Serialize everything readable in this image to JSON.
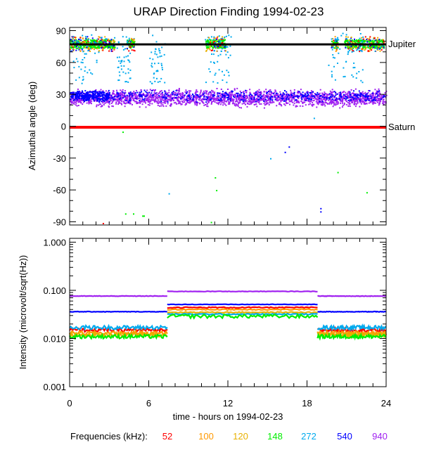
{
  "chart_data": [
    {
      "type": "scatter",
      "title": "URAP Direction Finding  1994-02-23",
      "ylabel": "Azimuthal angle (deg)",
      "xlim": [
        0,
        24
      ],
      "ylim": [
        -93,
        93
      ],
      "y_ticks": [
        90,
        60,
        30,
        0,
        -30,
        -60,
        -90
      ],
      "y_tick_labels": [
        "90",
        "60",
        "30",
        "0",
        "-30",
        "-60",
        "-90"
      ],
      "reference_lines": [
        {
          "name": "Jupiter",
          "y": 77,
          "color": "#000000"
        },
        {
          "name": "Saturn",
          "y": -1,
          "color": "#ff0000"
        }
      ],
      "series": [
        {
          "name": "940",
          "color": "#a020f0",
          "description": "dense band",
          "y_center": 27,
          "y_spread": 7
        },
        {
          "name": "540",
          "color": "#0000ff",
          "description": "band",
          "y_center": 29,
          "y_spread": 5
        },
        {
          "name": "272",
          "color": "#00aaee",
          "description": "scattered 40-90 deg near hours 0-2, 10-12, 20-22"
        },
        {
          "name": "148",
          "color": "#00ee00",
          "description": "clusters near 78 deg at hours 0-3.5, 10.5-11.5, 21-23.5"
        },
        {
          "name": "120",
          "color": "#e8b000",
          "description": "sparse near 80 deg"
        },
        {
          "name": "100",
          "color": "#ff9900",
          "description": "sparse near 80 deg"
        },
        {
          "name": "52",
          "color": "#ff0000",
          "description": "sparse near 80 deg"
        }
      ]
    },
    {
      "type": "line",
      "ylabel": "Intensity (microvolt/sqrt(Hz))",
      "xlabel": "time - hours on 1994-02-23",
      "yscale": "log",
      "ylim": [
        0.001,
        1.2
      ],
      "y_ticks": [
        1.0,
        0.1,
        0.01,
        0.001
      ],
      "y_tick_labels": [
        "1.000",
        "0.100",
        "0.010",
        "0.001"
      ],
      "x_ticks": [
        0,
        6,
        12,
        18,
        24
      ],
      "x_tick_labels": [
        "0",
        "6",
        "12",
        "18",
        "24"
      ],
      "segments_hours": [
        [
          0,
          7.4
        ],
        [
          7.4,
          18.8
        ],
        [
          18.8,
          24
        ]
      ],
      "series": [
        {
          "name": "940",
          "color": "#a020f0",
          "levels": [
            0.076,
            0.095,
            0.076
          ]
        },
        {
          "name": "540",
          "color": "#0000ff",
          "levels": [
            0.036,
            0.051,
            0.036
          ]
        },
        {
          "name": "52",
          "color": "#ff0000",
          "levels": [
            0.015,
            0.044,
            0.015
          ]
        },
        {
          "name": "100",
          "color": "#ff9900",
          "levels": [
            0.013,
            0.04,
            0.013
          ]
        },
        {
          "name": "120",
          "color": "#e8b000",
          "levels": [
            0.012,
            0.035,
            0.012
          ]
        },
        {
          "name": "272",
          "color": "#00aaee",
          "levels": [
            0.017,
            0.032,
            0.017
          ]
        },
        {
          "name": "148",
          "color": "#00ee00",
          "levels": [
            0.011,
            0.029,
            0.011
          ]
        }
      ]
    }
  ],
  "legend": {
    "label": "Frequencies (kHz):",
    "items": [
      {
        "text": "52",
        "color": "#ff0000"
      },
      {
        "text": "100",
        "color": "#ff9900"
      },
      {
        "text": "120",
        "color": "#e8b000"
      },
      {
        "text": "148",
        "color": "#00ee00"
      },
      {
        "text": "272",
        "color": "#00aaee"
      },
      {
        "text": "540",
        "color": "#0000ff"
      },
      {
        "text": "940",
        "color": "#a020f0"
      }
    ]
  }
}
